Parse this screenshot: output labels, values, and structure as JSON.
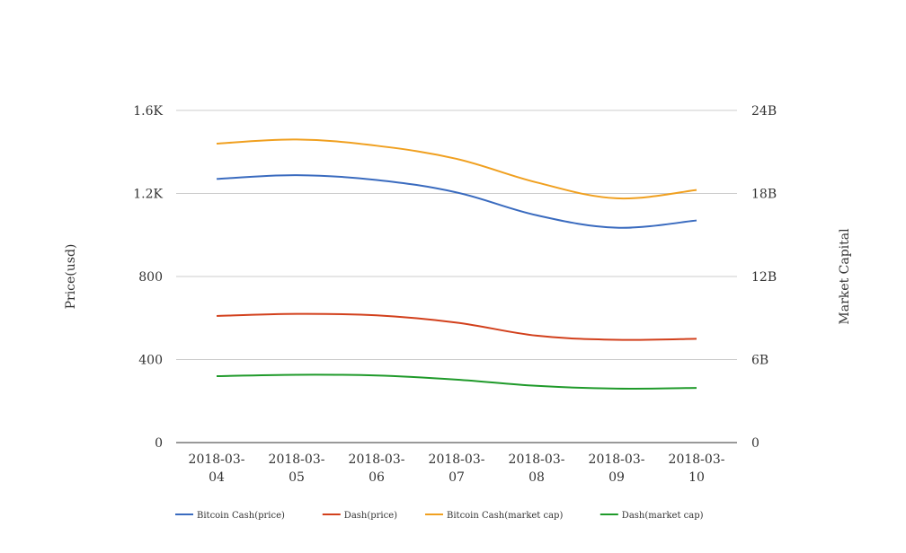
{
  "chart_data": {
    "type": "line",
    "categories": [
      [
        "2018-03-",
        "04"
      ],
      [
        "2018-03-",
        "05"
      ],
      [
        "2018-03-",
        "06"
      ],
      [
        "2018-03-",
        "07"
      ],
      [
        "2018-03-",
        "08"
      ],
      [
        "2018-03-",
        "09"
      ],
      [
        "2018-03-",
        "10"
      ]
    ],
    "y_left": {
      "label": "Price(usd)",
      "range": [
        0,
        1600
      ],
      "ticks": [
        0,
        400,
        800,
        1200,
        1600
      ],
      "tick_labels": [
        "0",
        "400",
        "800",
        "1.2K",
        "1.6K"
      ]
    },
    "y_right": {
      "label": "Market Capital",
      "range": [
        0,
        24000000000
      ],
      "ticks": [
        0,
        6000000000,
        12000000000,
        18000000000,
        24000000000
      ],
      "tick_labels": [
        "0",
        "6B",
        "12B",
        "18B",
        "24B"
      ]
    },
    "grid": true,
    "legend_position": "bottom",
    "series": [
      {
        "name": "Bitcoin Cash(price)",
        "axis": "left",
        "color": "#3a6bbf",
        "values": [
          1270,
          1288,
          1265,
          1205,
          1095,
          1035,
          1070
        ]
      },
      {
        "name": "Dash(price)",
        "axis": "left",
        "color": "#d2401c",
        "values": [
          610,
          620,
          613,
          578,
          515,
          495,
          500
        ]
      },
      {
        "name": "Bitcoin Cash(market cap)",
        "axis": "right",
        "color": "#f0a020",
        "values": [
          21600000000,
          21900000000,
          21450000000,
          20500000000,
          18800000000,
          17650000000,
          18250000000
        ]
      },
      {
        "name": "Dash(market cap)",
        "axis": "right",
        "color": "#1f9a2a",
        "values": [
          4800000000,
          4900000000,
          4850000000,
          4550000000,
          4100000000,
          3900000000,
          3950000000
        ]
      }
    ]
  }
}
